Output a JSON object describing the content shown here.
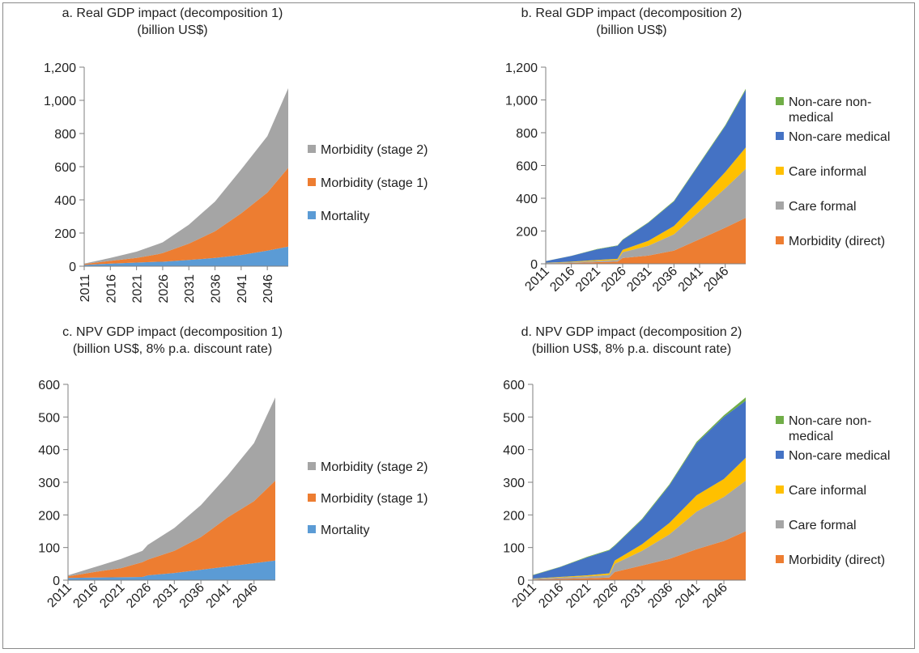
{
  "chart_data": [
    {
      "id": "a",
      "type": "area",
      "stacked": true,
      "title": "a. Real GDP impact (decomposition 1)",
      "subtitle": "(billion US$)",
      "x_ticks": [
        "2011",
        "2016",
        "2021",
        "2026",
        "2031",
        "2036",
        "2041",
        "2046"
      ],
      "ylim": [
        0,
        1200
      ],
      "y_ticks": [
        "0",
        "200",
        "400",
        "600",
        "800",
        "1,000",
        "1,200"
      ],
      "y_tick_values": [
        0,
        200,
        400,
        600,
        800,
        1000,
        1200
      ],
      "x": [
        2011,
        2016,
        2021,
        2025,
        2026,
        2031,
        2036,
        2041,
        2046,
        2050
      ],
      "series": [
        {
          "name": "Mortality",
          "color": "#5b9bd5",
          "values": [
            8,
            16,
            22,
            27,
            27,
            38,
            50,
            68,
            94,
            118
          ]
        },
        {
          "name": "Morbidity (stage 1)",
          "color": "#ed7d31",
          "values": [
            5,
            16,
            28,
            45,
            52,
            98,
            160,
            250,
            350,
            475
          ]
        },
        {
          "name": "Morbidity (stage 2)",
          "color": "#a5a5a5",
          "values": [
            3,
            18,
            38,
            60,
            65,
            114,
            180,
            265,
            340,
            480
          ]
        }
      ],
      "legend": {
        "placement": "right",
        "order": [
          "Morbidity (stage 2)",
          "Morbidity (stage 1)",
          "Mortality"
        ]
      }
    },
    {
      "id": "b",
      "type": "area",
      "stacked": true,
      "title": "b. Real GDP impact (decomposition 2)",
      "subtitle": "(billion US$)",
      "x_ticks": [
        "2011",
        "2016",
        "2021",
        "2026",
        "2031",
        "2036",
        "2041",
        "2046"
      ],
      "ylim": [
        0,
        1200
      ],
      "y_ticks": [
        "0",
        "200",
        "400",
        "600",
        "800",
        "1,000",
        "1,200"
      ],
      "y_tick_values": [
        0,
        200,
        400,
        600,
        800,
        1000,
        1200
      ],
      "x": [
        2011,
        2016,
        2021,
        2025,
        2026,
        2031,
        2036,
        2041,
        2046,
        2050
      ],
      "series": [
        {
          "name": "Morbidity (direct)",
          "color": "#ed7d31",
          "values": [
            3,
            5,
            10,
            13,
            35,
            50,
            80,
            150,
            220,
            280
          ]
        },
        {
          "name": "Care formal",
          "color": "#a5a5a5",
          "values": [
            2,
            5,
            8,
            10,
            35,
            60,
            100,
            170,
            240,
            300
          ]
        },
        {
          "name": "Care informal",
          "color": "#ffc000",
          "values": [
            1,
            3,
            5,
            7,
            15,
            30,
            50,
            70,
            100,
            130
          ]
        },
        {
          "name": "Non-care medical",
          "color": "#4472c4",
          "values": [
            10,
            35,
            65,
            80,
            60,
            110,
            150,
            220,
            280,
            350
          ]
        },
        {
          "name": "Non-care non-\nmedical",
          "color": "#70ad47",
          "values": [
            1,
            1,
            2,
            2,
            3,
            3,
            4,
            5,
            6,
            8
          ]
        }
      ],
      "legend": {
        "placement": "right",
        "order": [
          "Non-care non-\nmedical",
          "Non-care medical",
          "Care informal",
          "Care formal",
          "Morbidity (direct)"
        ]
      }
    },
    {
      "id": "c",
      "type": "area",
      "stacked": true,
      "title": "c. NPV GDP impact (decomposition 1)",
      "subtitle": "(billion US$, 8% p.a. discount rate)",
      "x_ticks": [
        "2011",
        "2016",
        "2021",
        "2026",
        "2031",
        "2036",
        "2041",
        "2046"
      ],
      "ylim": [
        0,
        600
      ],
      "y_ticks": [
        "0",
        "100",
        "200",
        "300",
        "400",
        "500",
        "600"
      ],
      "y_tick_values": [
        0,
        100,
        200,
        300,
        400,
        500,
        600
      ],
      "x": [
        2011,
        2016,
        2021,
        2025,
        2026,
        2031,
        2036,
        2041,
        2046,
        2050
      ],
      "series": [
        {
          "name": "Mortality",
          "color": "#5b9bd5",
          "values": [
            7,
            8,
            9,
            10,
            15,
            22,
            32,
            42,
            52,
            60
          ]
        },
        {
          "name": "Morbidity (stage 1)",
          "color": "#ed7d31",
          "values": [
            5,
            17,
            28,
            45,
            48,
            68,
            100,
            150,
            190,
            245
          ]
        },
        {
          "name": "Morbidity (stage 2)",
          "color": "#a5a5a5",
          "values": [
            3,
            15,
            28,
            35,
            45,
            70,
            98,
            128,
            178,
            255
          ]
        }
      ],
      "legend": {
        "placement": "right",
        "order": [
          "Morbidity (stage 2)",
          "Morbidity (stage 1)",
          "Mortality"
        ]
      }
    },
    {
      "id": "d",
      "type": "area",
      "stacked": true,
      "title": "d. NPV GDP impact (decomposition 2)",
      "subtitle": "(billion US$, 8% p.a. discount rate)",
      "x_ticks": [
        "2011",
        "2016",
        "2021",
        "2026",
        "2031",
        "2036",
        "2041",
        "2046"
      ],
      "ylim": [
        0,
        600
      ],
      "y_ticks": [
        "0",
        "100",
        "200",
        "300",
        "400",
        "500",
        "600"
      ],
      "y_tick_values": [
        0,
        100,
        200,
        300,
        400,
        500,
        600
      ],
      "x": [
        2011,
        2016,
        2021,
        2025,
        2026,
        2031,
        2036,
        2041,
        2046,
        2050
      ],
      "series": [
        {
          "name": "Morbidity (direct)",
          "color": "#ed7d31",
          "values": [
            2,
            4,
            6,
            8,
            25,
            45,
            65,
            95,
            120,
            150
          ]
        },
        {
          "name": "Care formal",
          "color": "#a5a5a5",
          "values": [
            2,
            4,
            6,
            8,
            25,
            45,
            75,
            115,
            135,
            155
          ]
        },
        {
          "name": "Care informal",
          "color": "#ffc000",
          "values": [
            1,
            2,
            3,
            5,
            10,
            20,
            35,
            50,
            55,
            70
          ]
        },
        {
          "name": "Non-care medical",
          "color": "#4472c4",
          "values": [
            10,
            30,
            55,
            70,
            45,
            75,
            115,
            160,
            190,
            175
          ]
        },
        {
          "name": "Non-care non-\nmedical",
          "color": "#70ad47",
          "values": [
            1,
            1,
            2,
            2,
            2,
            3,
            3,
            4,
            5,
            10
          ]
        }
      ],
      "legend": {
        "placement": "right",
        "order": [
          "Non-care non-\nmedical",
          "Non-care medical",
          "Care informal",
          "Care formal",
          "Morbidity (direct)"
        ]
      }
    }
  ]
}
